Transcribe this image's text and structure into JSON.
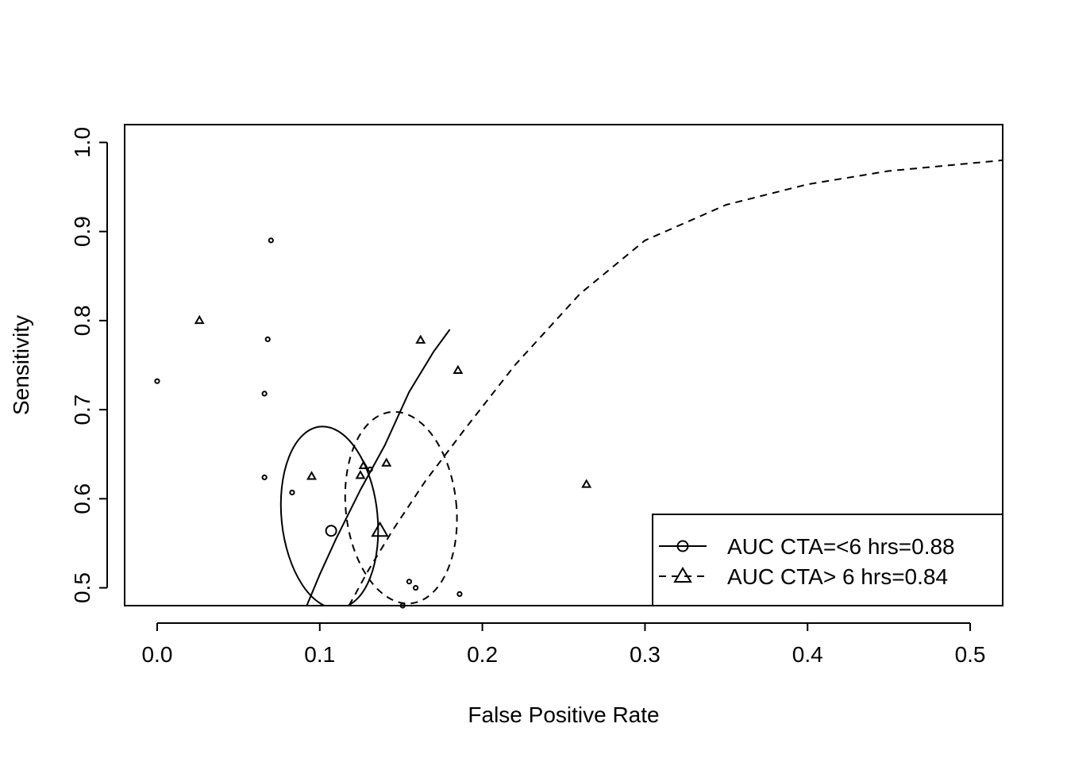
{
  "chart_data": {
    "type": "scatter",
    "title": "",
    "xlabel": "False Positive Rate",
    "ylabel": "Sensitivity",
    "xlim": [
      -0.02,
      0.52
    ],
    "ylim": [
      0.48,
      1.02
    ],
    "x_ticks": [
      "0.0",
      "0.1",
      "0.2",
      "0.3",
      "0.4",
      "0.5"
    ],
    "y_ticks": [
      "0.5",
      "0.6",
      "0.7",
      "0.8",
      "0.9",
      "1.0"
    ],
    "grid": false,
    "legend_position": "bottom-right",
    "series": [
      {
        "name": "AUC CTA=<6 hrs=0.88",
        "marker": "circle",
        "line_style": "solid",
        "points": [
          {
            "x": 0.0,
            "y": 0.732
          },
          {
            "x": 0.07,
            "y": 0.89
          },
          {
            "x": 0.068,
            "y": 0.779
          },
          {
            "x": 0.066,
            "y": 0.718
          },
          {
            "x": 0.066,
            "y": 0.624
          },
          {
            "x": 0.083,
            "y": 0.607
          },
          {
            "x": 0.131,
            "y": 0.633
          },
          {
            "x": 0.155,
            "y": 0.507
          },
          {
            "x": 0.159,
            "y": 0.5
          },
          {
            "x": 0.186,
            "y": 0.493
          },
          {
            "x": 0.151,
            "y": 0.48
          }
        ],
        "summary_point": {
          "x": 0.107,
          "y": 0.564
        },
        "curve": [
          {
            "x": 0.092,
            "y": 0.48
          },
          {
            "x": 0.1,
            "y": 0.515
          },
          {
            "x": 0.11,
            "y": 0.555
          },
          {
            "x": 0.125,
            "y": 0.61
          },
          {
            "x": 0.14,
            "y": 0.66
          },
          {
            "x": 0.155,
            "y": 0.72
          },
          {
            "x": 0.17,
            "y": 0.765
          },
          {
            "x": 0.18,
            "y": 0.79
          }
        ],
        "confidence_ellipse": {
          "cx": 0.106,
          "cy": 0.579,
          "rx": 0.0295,
          "ry": 0.1025
        }
      },
      {
        "name": "AUC CTA> 6 hrs=0.84",
        "marker": "triangle",
        "line_style": "dashed",
        "points": [
          {
            "x": 0.026,
            "y": 0.8
          },
          {
            "x": 0.095,
            "y": 0.625
          },
          {
            "x": 0.125,
            "y": 0.626
          },
          {
            "x": 0.127,
            "y": 0.637
          },
          {
            "x": 0.141,
            "y": 0.64
          },
          {
            "x": 0.162,
            "y": 0.778
          },
          {
            "x": 0.185,
            "y": 0.744
          },
          {
            "x": 0.264,
            "y": 0.616
          }
        ],
        "summary_point": {
          "x": 0.137,
          "y": 0.564
        },
        "curve": [
          {
            "x": 0.118,
            "y": 0.48
          },
          {
            "x": 0.13,
            "y": 0.52
          },
          {
            "x": 0.145,
            "y": 0.565
          },
          {
            "x": 0.165,
            "y": 0.62
          },
          {
            "x": 0.19,
            "y": 0.68
          },
          {
            "x": 0.22,
            "y": 0.75
          },
          {
            "x": 0.26,
            "y": 0.83
          },
          {
            "x": 0.3,
            "y": 0.89
          },
          {
            "x": 0.35,
            "y": 0.93
          },
          {
            "x": 0.4,
            "y": 0.953
          },
          {
            "x": 0.45,
            "y": 0.968
          },
          {
            "x": 0.52,
            "y": 0.98
          }
        ],
        "confidence_ellipse": {
          "cx": 0.15,
          "cy": 0.59,
          "rx": 0.034,
          "ry": 0.108
        }
      }
    ]
  }
}
